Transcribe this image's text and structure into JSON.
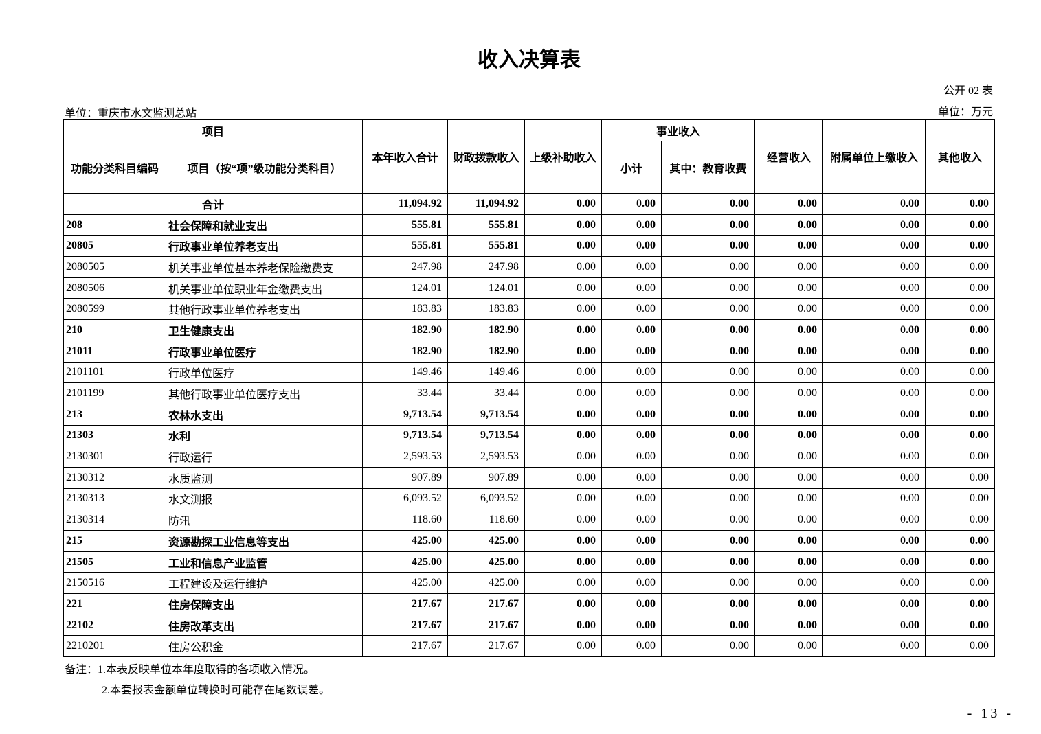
{
  "title": "收入决算表",
  "table_no": "公开 02 表",
  "unit_org": "单位：重庆市水文监测总站",
  "unit_money": "单位：万元",
  "headers": {
    "project": "项目",
    "code": "功能分类科目编码",
    "name": "项目（按“项”级功能分类科目）",
    "total": "本年收入合计",
    "fiscal": "财政拨款收入",
    "superior": "上级补助收入",
    "business": "事业收入",
    "subtotal": "小计",
    "edu": "其中：教育收费",
    "operating": "经营收入",
    "affiliated": "附属单位上缴收入",
    "other": "其他收入"
  },
  "total_row": {
    "label": "合计",
    "values": [
      "11,094.92",
      "11,094.92",
      "0.00",
      "0.00",
      "0.00",
      "0.00",
      "0.00",
      "0.00"
    ]
  },
  "rows": [
    {
      "code": "208",
      "name": "社会保障和就业支出",
      "bold": true,
      "values": [
        "555.81",
        "555.81",
        "0.00",
        "0.00",
        "0.00",
        "0.00",
        "0.00",
        "0.00"
      ]
    },
    {
      "code": "20805",
      "name": "行政事业单位养老支出",
      "bold": true,
      "values": [
        "555.81",
        "555.81",
        "0.00",
        "0.00",
        "0.00",
        "0.00",
        "0.00",
        "0.00"
      ]
    },
    {
      "code": "2080505",
      "name": "机关事业单位基本养老保险缴费支",
      "bold": false,
      "values": [
        "247.98",
        "247.98",
        "0.00",
        "0.00",
        "0.00",
        "0.00",
        "0.00",
        "0.00"
      ]
    },
    {
      "code": "2080506",
      "name": "机关事业单位职业年金缴费支出",
      "bold": false,
      "values": [
        "124.01",
        "124.01",
        "0.00",
        "0.00",
        "0.00",
        "0.00",
        "0.00",
        "0.00"
      ]
    },
    {
      "code": "2080599",
      "name": "其他行政事业单位养老支出",
      "bold": false,
      "values": [
        "183.83",
        "183.83",
        "0.00",
        "0.00",
        "0.00",
        "0.00",
        "0.00",
        "0.00"
      ]
    },
    {
      "code": "210",
      "name": "卫生健康支出",
      "bold": true,
      "values": [
        "182.90",
        "182.90",
        "0.00",
        "0.00",
        "0.00",
        "0.00",
        "0.00",
        "0.00"
      ]
    },
    {
      "code": "21011",
      "name": "行政事业单位医疗",
      "bold": true,
      "values": [
        "182.90",
        "182.90",
        "0.00",
        "0.00",
        "0.00",
        "0.00",
        "0.00",
        "0.00"
      ]
    },
    {
      "code": "2101101",
      "name": "行政单位医疗",
      "bold": false,
      "values": [
        "149.46",
        "149.46",
        "0.00",
        "0.00",
        "0.00",
        "0.00",
        "0.00",
        "0.00"
      ]
    },
    {
      "code": "2101199",
      "name": "其他行政事业单位医疗支出",
      "bold": false,
      "values": [
        "33.44",
        "33.44",
        "0.00",
        "0.00",
        "0.00",
        "0.00",
        "0.00",
        "0.00"
      ]
    },
    {
      "code": "213",
      "name": "农林水支出",
      "bold": true,
      "values": [
        "9,713.54",
        "9,713.54",
        "0.00",
        "0.00",
        "0.00",
        "0.00",
        "0.00",
        "0.00"
      ]
    },
    {
      "code": "21303",
      "name": "水利",
      "bold": true,
      "values": [
        "9,713.54",
        "9,713.54",
        "0.00",
        "0.00",
        "0.00",
        "0.00",
        "0.00",
        "0.00"
      ]
    },
    {
      "code": "2130301",
      "name": "行政运行",
      "bold": false,
      "values": [
        "2,593.53",
        "2,593.53",
        "0.00",
        "0.00",
        "0.00",
        "0.00",
        "0.00",
        "0.00"
      ]
    },
    {
      "code": "2130312",
      "name": "水质监测",
      "bold": false,
      "values": [
        "907.89",
        "907.89",
        "0.00",
        "0.00",
        "0.00",
        "0.00",
        "0.00",
        "0.00"
      ]
    },
    {
      "code": "2130313",
      "name": "水文测报",
      "bold": false,
      "values": [
        "6,093.52",
        "6,093.52",
        "0.00",
        "0.00",
        "0.00",
        "0.00",
        "0.00",
        "0.00"
      ]
    },
    {
      "code": "2130314",
      "name": "防汛",
      "bold": false,
      "values": [
        "118.60",
        "118.60",
        "0.00",
        "0.00",
        "0.00",
        "0.00",
        "0.00",
        "0.00"
      ]
    },
    {
      "code": "215",
      "name": "资源勘探工业信息等支出",
      "bold": true,
      "values": [
        "425.00",
        "425.00",
        "0.00",
        "0.00",
        "0.00",
        "0.00",
        "0.00",
        "0.00"
      ]
    },
    {
      "code": "21505",
      "name": "工业和信息产业监管",
      "bold": true,
      "values": [
        "425.00",
        "425.00",
        "0.00",
        "0.00",
        "0.00",
        "0.00",
        "0.00",
        "0.00"
      ]
    },
    {
      "code": "2150516",
      "name": "工程建设及运行维护",
      "bold": false,
      "values": [
        "425.00",
        "425.00",
        "0.00",
        "0.00",
        "0.00",
        "0.00",
        "0.00",
        "0.00"
      ]
    },
    {
      "code": "221",
      "name": "住房保障支出",
      "bold": true,
      "values": [
        "217.67",
        "217.67",
        "0.00",
        "0.00",
        "0.00",
        "0.00",
        "0.00",
        "0.00"
      ]
    },
    {
      "code": "22102",
      "name": "住房改革支出",
      "bold": true,
      "values": [
        "217.67",
        "217.67",
        "0.00",
        "0.00",
        "0.00",
        "0.00",
        "0.00",
        "0.00"
      ]
    },
    {
      "code": "2210201",
      "name": "住房公积金",
      "bold": false,
      "values": [
        "217.67",
        "217.67",
        "0.00",
        "0.00",
        "0.00",
        "0.00",
        "0.00",
        "0.00"
      ]
    }
  ],
  "notes": [
    "备注：1.本表反映单位本年度取得的各项收入情况。",
    "2.本套报表金额单位转换时可能存在尾数误差。"
  ],
  "page_number": "- 13 -"
}
